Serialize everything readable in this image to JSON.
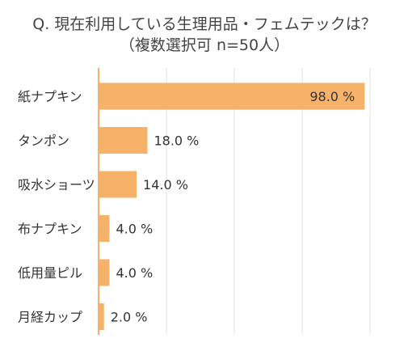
{
  "chart_data": {
    "type": "bar",
    "orientation": "horizontal",
    "title": "Q. 現在利用している生理用品・フェムテックは？",
    "subtitle": "（複数選択可 n=50人）",
    "categories": [
      "紙ナプキン",
      "タンポン",
      "吸水ショーツ",
      "布ナプキン",
      "低用量ピル",
      "月経カップ"
    ],
    "values": [
      98.0,
      18.0,
      14.0,
      4.0,
      4.0,
      2.0
    ],
    "value_labels": [
      "98.0 %",
      "18.0 %",
      "14.0 %",
      "4.0 %",
      "4.0 %",
      "2.0 %"
    ],
    "xlim": [
      0,
      100
    ],
    "grid": true,
    "bar_color": "#f7b26a",
    "grid_color": "#e3e3e3",
    "axis_color": "#f7b26a"
  }
}
